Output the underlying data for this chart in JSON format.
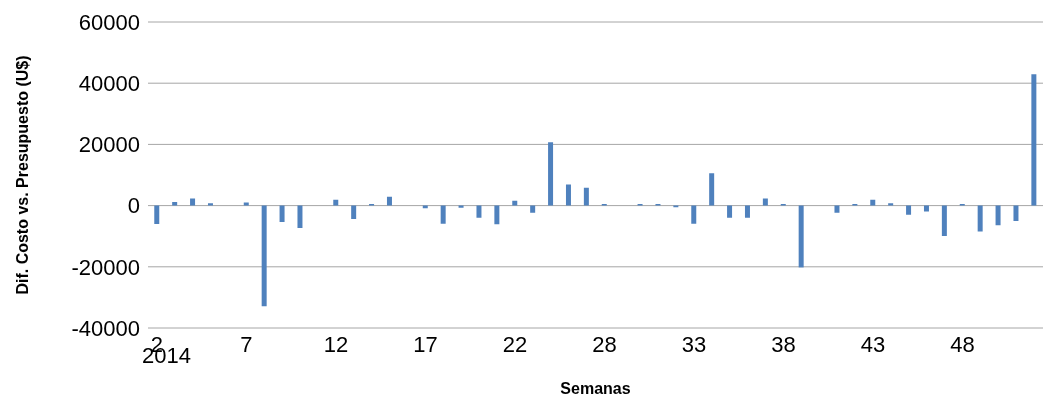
{
  "chart_data": {
    "type": "bar",
    "xlabel": "Semanas",
    "ylabel": "Dif. Costo vs. Presupuesto (U$)",
    "categories": [
      "2",
      null,
      null,
      null,
      null,
      "7",
      null,
      null,
      null,
      null,
      "12",
      null,
      null,
      null,
      null,
      "17",
      null,
      null,
      null,
      null,
      "22",
      null,
      null,
      null,
      null,
      "28",
      null,
      null,
      null,
      null,
      "33",
      null,
      null,
      null,
      null,
      "38",
      null,
      null,
      null,
      null,
      "43",
      null,
      null,
      null,
      null,
      "48",
      null,
      null,
      null,
      null
    ],
    "series": [
      {
        "color": "#4f81bd",
        "values": [
          -6000,
          1200,
          2300,
          800,
          0,
          1000,
          -32900,
          -5400,
          -7300,
          0,
          1900,
          -4400,
          500,
          2900,
          0,
          -900,
          -5900,
          -700,
          -4000,
          -6100,
          1600,
          -2300,
          20700,
          6900,
          5800,
          500,
          0,
          500,
          500,
          -500,
          -5900,
          10600,
          -4000,
          -4000,
          2300,
          500,
          -20200,
          0,
          -2300,
          500,
          1900,
          800,
          -3000,
          -1900,
          -9900,
          500,
          -8500,
          -6400,
          -5000,
          42900
        ]
      }
    ],
    "ylim": [
      -40000,
      60000
    ],
    "yticks": [
      -40000,
      -20000,
      0,
      20000,
      40000,
      60000
    ],
    "grid": "y",
    "legend": false,
    "annotations": [
      "2014"
    ]
  }
}
